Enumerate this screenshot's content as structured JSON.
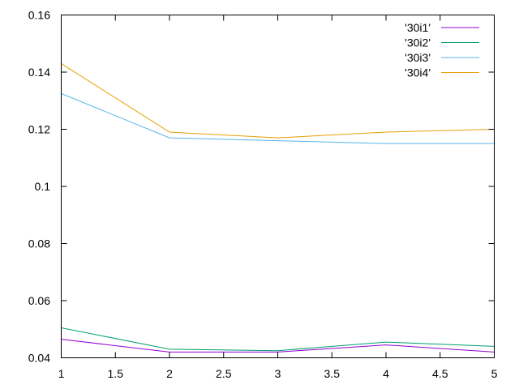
{
  "chart_data": {
    "type": "line",
    "title": "",
    "xlabel": "",
    "ylabel": "",
    "xlim": [
      1,
      5
    ],
    "ylim": [
      0.04,
      0.16
    ],
    "xticks": [
      1,
      1.5,
      2,
      2.5,
      3,
      3.5,
      4,
      4.5,
      5
    ],
    "xtick_labels": [
      "1",
      "1.5",
      "2",
      "2.5",
      "3",
      "3.5",
      "4",
      "4.5",
      "5"
    ],
    "yticks": [
      0.04,
      0.06,
      0.08,
      0.1,
      0.12,
      0.14,
      0.16
    ],
    "ytick_labels": [
      "0.04",
      "0.06",
      "0.08",
      "0.1",
      "0.12",
      "0.14",
      "0.16"
    ],
    "grid": false,
    "legend_position": "top-right",
    "x": [
      1,
      2,
      3,
      4,
      5
    ],
    "series": [
      {
        "name": "'30i1'",
        "color": "#9400d3",
        "values": [
          0.0465,
          0.042,
          0.042,
          0.0445,
          0.042
        ]
      },
      {
        "name": "'30i2'",
        "color": "#009e73",
        "values": [
          0.0505,
          0.043,
          0.0425,
          0.0455,
          0.044
        ]
      },
      {
        "name": "'30i3'",
        "color": "#56b4e9",
        "values": [
          0.1325,
          0.117,
          0.116,
          0.115,
          0.115
        ]
      },
      {
        "name": "'30i4'",
        "color": "#e69f00",
        "values": [
          0.143,
          0.119,
          0.117,
          0.119,
          0.12
        ]
      }
    ]
  }
}
